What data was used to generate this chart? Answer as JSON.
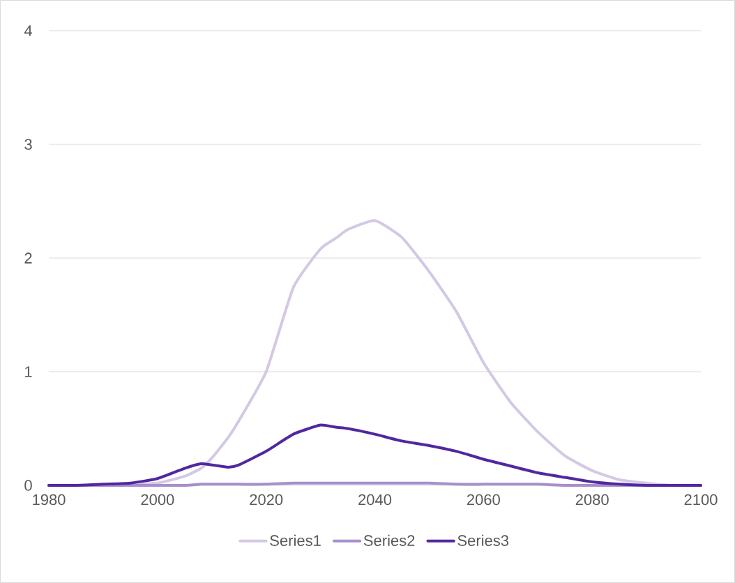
{
  "chart_data": {
    "type": "line",
    "x": [
      1980,
      1985,
      1990,
      1995,
      2000,
      2005,
      2008,
      2010,
      2013,
      2015,
      2020,
      2025,
      2030,
      2033,
      2035,
      2040,
      2045,
      2050,
      2055,
      2060,
      2065,
      2070,
      2075,
      2080,
      2085,
      2090,
      2095,
      2100
    ],
    "series": [
      {
        "name": "Series1",
        "color": "#d4c9e4",
        "values": [
          0,
          0,
          0,
          0.01,
          0.02,
          0.08,
          0.15,
          0.24,
          0.42,
          0.57,
          1.0,
          1.74,
          2.08,
          2.18,
          2.25,
          2.33,
          2.18,
          1.88,
          1.53,
          1.08,
          0.73,
          0.47,
          0.26,
          0.13,
          0.05,
          0.02,
          0,
          0
        ]
      },
      {
        "name": "Series2",
        "color": "#a88fca",
        "values": [
          0,
          0,
          0,
          0,
          0,
          0,
          0.01,
          0.01,
          0.01,
          0.01,
          0.01,
          0.02,
          0.02,
          0.02,
          0.02,
          0.02,
          0.02,
          0.02,
          0.01,
          0.01,
          0.01,
          0.01,
          0,
          0,
          0,
          0,
          0,
          0
        ]
      },
      {
        "name": "Series3",
        "color": "#5028a0",
        "values": [
          0,
          0,
          0.01,
          0.02,
          0.06,
          0.15,
          0.19,
          0.18,
          0.16,
          0.18,
          0.3,
          0.45,
          0.53,
          0.51,
          0.5,
          0.45,
          0.39,
          0.35,
          0.3,
          0.23,
          0.17,
          0.11,
          0.07,
          0.03,
          0.01,
          0,
          0,
          0
        ]
      }
    ],
    "xlim": [
      1980,
      2100
    ],
    "ylim": [
      0,
      4
    ],
    "xticks": [
      1980,
      2000,
      2020,
      2040,
      2060,
      2080,
      2100
    ],
    "yticks": [
      0,
      1,
      2,
      3,
      4
    ],
    "grid": "y",
    "legend": "bottom"
  }
}
